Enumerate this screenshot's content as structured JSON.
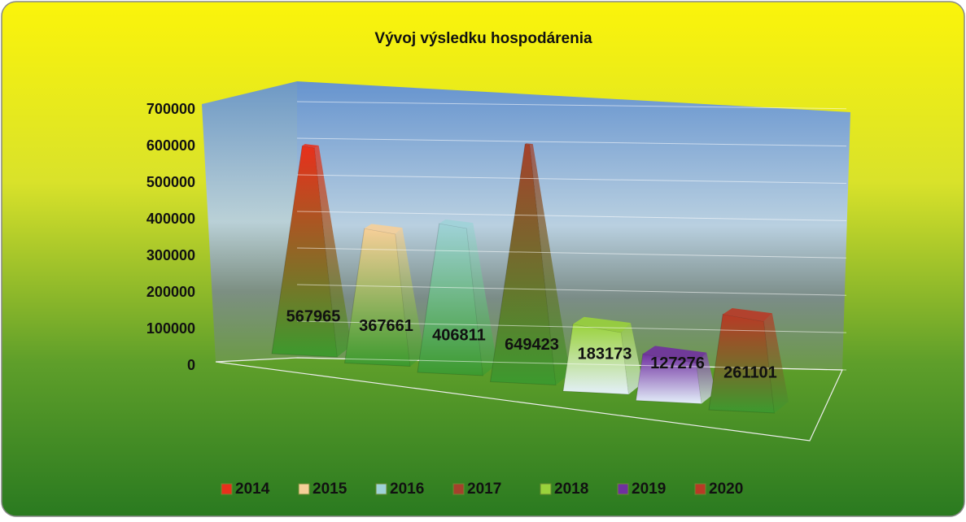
{
  "chart_data": {
    "type": "pyramid",
    "title": "Vývoj výsledku hospodárenia",
    "series": [
      {
        "name": "2014",
        "color": "#e8301c",
        "values": [
          567965
        ]
      },
      {
        "name": "2015",
        "color": "#f6cf98",
        "values": [
          367661
        ]
      },
      {
        "name": "2016",
        "color": "#9fd2d8",
        "values": [
          406811
        ]
      },
      {
        "name": "2017",
        "color": "#a5412c",
        "values": [
          649423
        ]
      },
      {
        "name": "2018",
        "color": "#9ad23c",
        "values": [
          183173
        ]
      },
      {
        "name": "2019",
        "color": "#7030a0",
        "values": [
          127276
        ]
      },
      {
        "name": "2020",
        "color": "#b83a26",
        "values": [
          261101
        ]
      }
    ],
    "ylim": [
      0,
      700000
    ],
    "yticks": [
      0,
      100000,
      200000,
      300000,
      400000,
      500000,
      600000,
      700000
    ],
    "grid": true,
    "legend": "bottom"
  }
}
